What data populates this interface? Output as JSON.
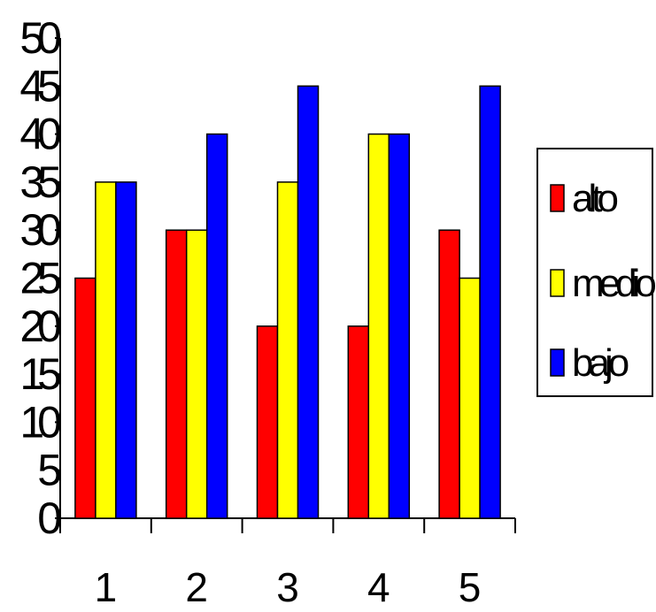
{
  "chart_data": {
    "type": "bar",
    "categories": [
      "1",
      "2",
      "3",
      "4",
      "5"
    ],
    "series": [
      {
        "name": "alto",
        "color": "#ff0000",
        "values": [
          25,
          30,
          20,
          20,
          30
        ]
      },
      {
        "name": "medio",
        "color": "#ffff00",
        "values": [
          35,
          30,
          35,
          40,
          25
        ]
      },
      {
        "name": "bajo",
        "color": "#0000ff",
        "values": [
          35,
          40,
          45,
          40,
          45
        ]
      }
    ],
    "title": "",
    "xlabel": "",
    "ylabel": "",
    "ylim": [
      0,
      50
    ],
    "yticks": [
      "0",
      "5",
      "10",
      "15",
      "20",
      "25",
      "30",
      "35",
      "40",
      "45",
      "50"
    ],
    "grid": false,
    "legend_position": "right"
  }
}
